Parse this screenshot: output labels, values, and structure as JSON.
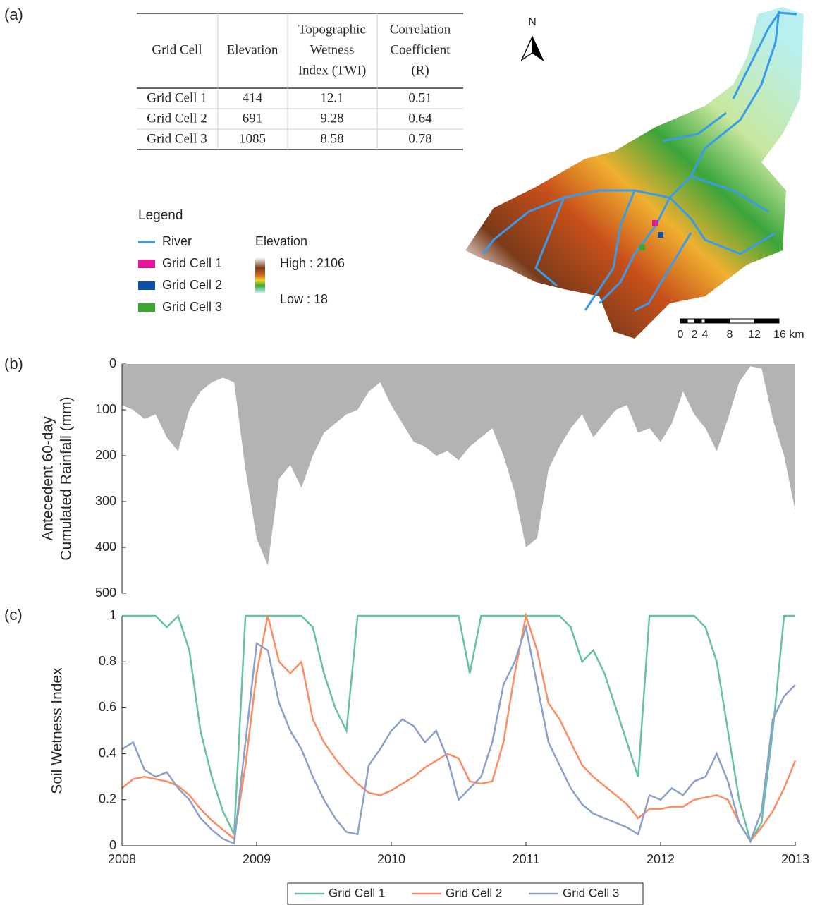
{
  "panel_labels": [
    "(a)",
    "(b)",
    "(c)"
  ],
  "table": {
    "header": [
      [
        "Grid Cell"
      ],
      [
        "Elevation"
      ],
      [
        "Topographic",
        "Wetness",
        "Index (TWI)"
      ],
      [
        "Correlation",
        "Coefficient",
        "(R)"
      ]
    ],
    "rows": [
      [
        "Grid Cell 1",
        "414",
        "12.1",
        "0.51"
      ],
      [
        "Grid Cell 2",
        "691",
        "9.28",
        "0.64"
      ],
      [
        "Grid Cell 3",
        "1085",
        "8.58",
        "0.78"
      ]
    ]
  },
  "map": {
    "north": "N",
    "legend_title": "Legend",
    "legend_items": [
      {
        "label": "River",
        "color": "#3a9bea"
      },
      {
        "label": "Grid Cell 1",
        "color": "#e4189b"
      },
      {
        "label": "Grid Cell 2",
        "color": "#0b4fa8"
      },
      {
        "label": "Grid Cell 3",
        "color": "#3ca92e"
      }
    ],
    "elevation_title": "Elevation",
    "high": "High : 2106",
    "low": "Low : 18",
    "scale_labels": [
      "0",
      "2",
      "4",
      "8",
      "12",
      "16 km"
    ]
  },
  "chart_data": [
    {
      "type": "area",
      "ylabel": [
        "Antecedent 60-day",
        "Cumulated Rainfall (mm)"
      ],
      "color": "#b3b3b3",
      "xlim": [
        2008,
        2013
      ],
      "ylim": [
        0,
        500
      ],
      "y_reversed": true,
      "yticks": [
        0,
        100,
        200,
        300,
        400,
        500
      ],
      "x": [
        2008,
        2008.083,
        2008.167,
        2008.25,
        2008.333,
        2008.417,
        2008.5,
        2008.583,
        2008.667,
        2008.75,
        2008.833,
        2008.917,
        2009,
        2009.083,
        2009.167,
        2009.25,
        2009.333,
        2009.417,
        2009.5,
        2009.583,
        2009.667,
        2009.75,
        2009.833,
        2009.917,
        2010,
        2010.083,
        2010.167,
        2010.25,
        2010.333,
        2010.417,
        2010.5,
        2010.583,
        2010.667,
        2010.75,
        2010.833,
        2010.917,
        2011,
        2011.083,
        2011.167,
        2011.25,
        2011.333,
        2011.417,
        2011.5,
        2011.583,
        2011.667,
        2011.75,
        2011.833,
        2011.917,
        2012,
        2012.083,
        2012.167,
        2012.25,
        2012.333,
        2012.417,
        2012.5,
        2012.583,
        2012.667,
        2012.75,
        2012.833,
        2012.917,
        2013
      ],
      "values": [
        90,
        100,
        120,
        110,
        160,
        190,
        100,
        60,
        40,
        30,
        40,
        230,
        380,
        440,
        250,
        220,
        270,
        200,
        150,
        130,
        110,
        100,
        60,
        40,
        90,
        130,
        170,
        180,
        200,
        190,
        210,
        180,
        160,
        140,
        200,
        280,
        400,
        380,
        230,
        180,
        140,
        110,
        160,
        130,
        100,
        90,
        150,
        140,
        170,
        130,
        60,
        110,
        140,
        190,
        120,
        40,
        5,
        10,
        120,
        200,
        320
      ]
    },
    {
      "type": "line",
      "ylabel": [
        "Soil Wetness Index"
      ],
      "xlim": [
        2008,
        2013
      ],
      "ylim": [
        0,
        1
      ],
      "xticks": [
        2008,
        2009,
        2010,
        2011,
        2012,
        2013
      ],
      "yticks": [
        0,
        0.2,
        0.4,
        0.6,
        0.8,
        1
      ],
      "x": [
        2008,
        2008.083,
        2008.167,
        2008.25,
        2008.333,
        2008.417,
        2008.5,
        2008.583,
        2008.667,
        2008.75,
        2008.833,
        2008.917,
        2009,
        2009.083,
        2009.167,
        2009.25,
        2009.333,
        2009.417,
        2009.5,
        2009.583,
        2009.667,
        2009.75,
        2009.833,
        2009.917,
        2010,
        2010.083,
        2010.167,
        2010.25,
        2010.333,
        2010.417,
        2010.5,
        2010.583,
        2010.667,
        2010.75,
        2010.833,
        2010.917,
        2011,
        2011.083,
        2011.167,
        2011.25,
        2011.333,
        2011.417,
        2011.5,
        2011.583,
        2011.667,
        2011.75,
        2011.833,
        2011.917,
        2012,
        2012.083,
        2012.167,
        2012.25,
        2012.333,
        2012.417,
        2012.5,
        2012.583,
        2012.667,
        2012.75,
        2012.833,
        2012.917,
        2013
      ],
      "series": [
        {
          "name": "Grid Cell 1",
          "color": "#66c2a5",
          "values": [
            1,
            1,
            1,
            1,
            0.95,
            1,
            0.85,
            0.5,
            0.3,
            0.15,
            0.05,
            1,
            1,
            1,
            1,
            1,
            1,
            0.95,
            0.75,
            0.6,
            0.5,
            1,
            1,
            1,
            1,
            1,
            1,
            1,
            1,
            1,
            1,
            0.75,
            1,
            1,
            1,
            1,
            1,
            1,
            1,
            1,
            0.95,
            0.8,
            0.85,
            0.75,
            0.6,
            0.45,
            0.3,
            1,
            1,
            1,
            1,
            1,
            0.95,
            0.8,
            0.5,
            0.2,
            0.02,
            0.1,
            0.5,
            1,
            1
          ]
        },
        {
          "name": "Grid Cell 2",
          "color": "#fc8d62",
          "values": [
            0.25,
            0.29,
            0.3,
            0.29,
            0.28,
            0.26,
            0.22,
            0.16,
            0.11,
            0.07,
            0.03,
            0.35,
            0.75,
            1,
            0.8,
            0.75,
            0.8,
            0.55,
            0.45,
            0.38,
            0.32,
            0.27,
            0.23,
            0.22,
            0.24,
            0.27,
            0.3,
            0.34,
            0.37,
            0.4,
            0.38,
            0.28,
            0.27,
            0.28,
            0.45,
            0.75,
            1,
            0.85,
            0.62,
            0.55,
            0.45,
            0.35,
            0.3,
            0.26,
            0.22,
            0.18,
            0.12,
            0.16,
            0.16,
            0.17,
            0.17,
            0.2,
            0.21,
            0.22,
            0.2,
            0.1,
            0.02,
            0.08,
            0.15,
            0.25,
            0.37
          ]
        },
        {
          "name": "Grid Cell 3",
          "color": "#8da0cb",
          "values": [
            0.42,
            0.45,
            0.33,
            0.3,
            0.32,
            0.25,
            0.2,
            0.12,
            0.07,
            0.03,
            0.01,
            0.45,
            0.88,
            0.85,
            0.62,
            0.5,
            0.42,
            0.3,
            0.2,
            0.12,
            0.06,
            0.05,
            0.35,
            0.42,
            0.5,
            0.55,
            0.52,
            0.45,
            0.5,
            0.38,
            0.2,
            0.25,
            0.3,
            0.45,
            0.7,
            0.8,
            0.95,
            0.7,
            0.45,
            0.35,
            0.25,
            0.18,
            0.14,
            0.12,
            0.1,
            0.08,
            0.05,
            0.22,
            0.2,
            0.25,
            0.22,
            0.28,
            0.3,
            0.4,
            0.28,
            0.1,
            0.02,
            0.15,
            0.55,
            0.65,
            0.7
          ]
        }
      ]
    }
  ]
}
